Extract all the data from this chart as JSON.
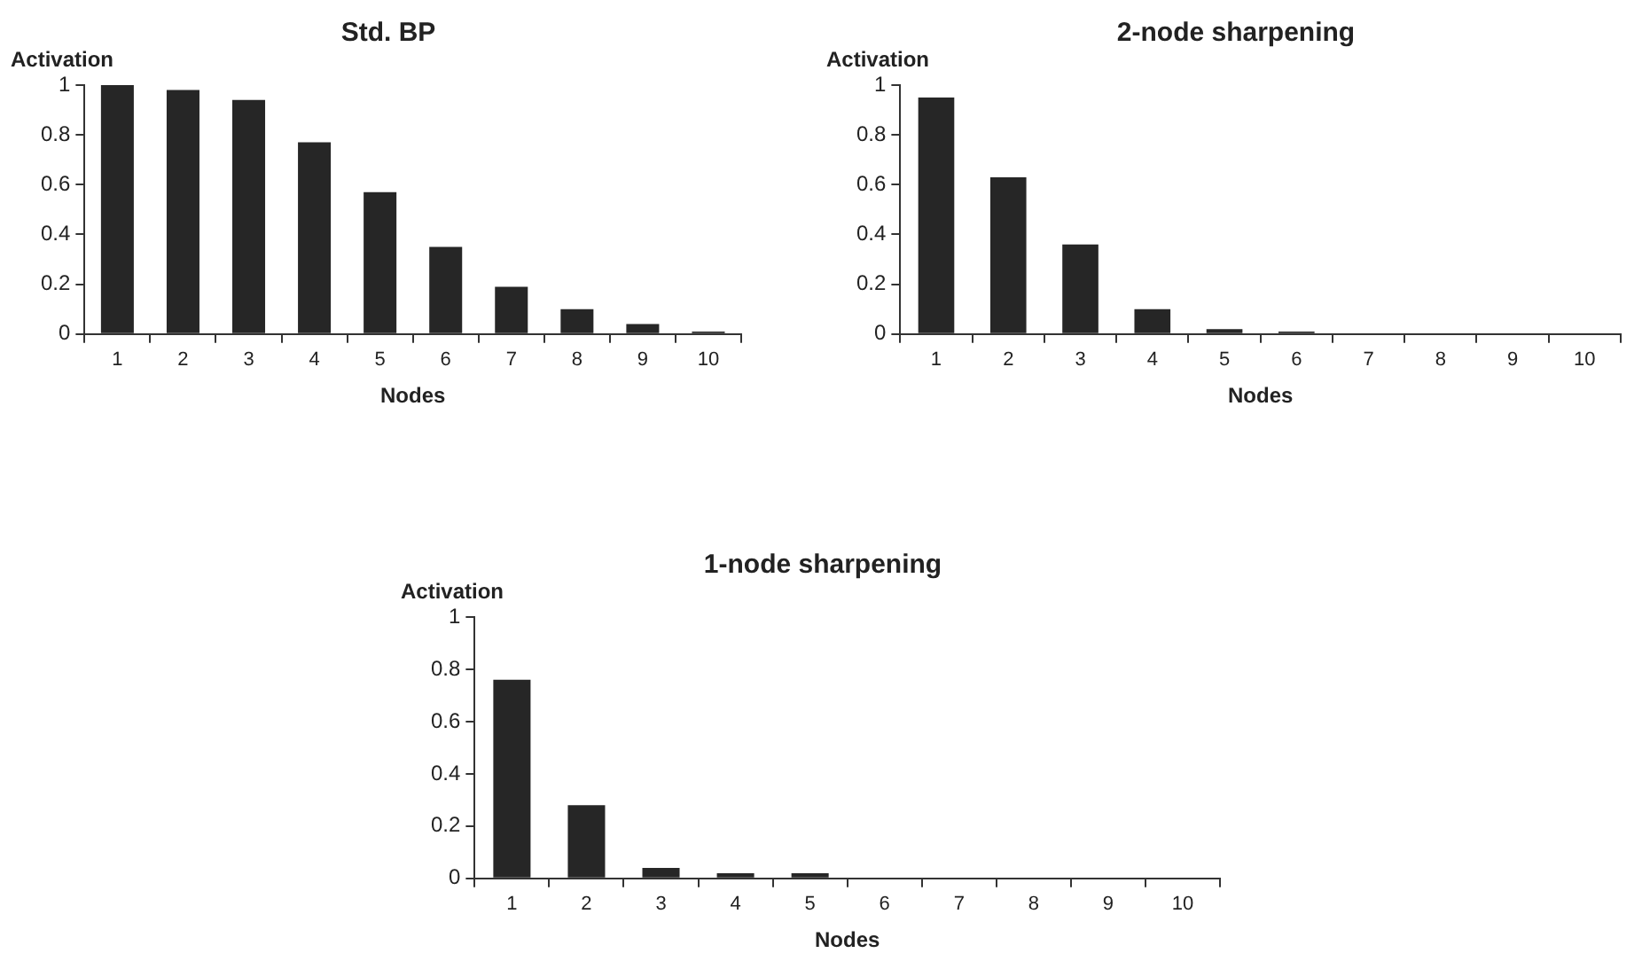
{
  "chart_data": [
    {
      "type": "bar",
      "title": "Std. BP",
      "xlabel": "Nodes",
      "ylabel": "Activation",
      "categories": [
        "1",
        "2",
        "3",
        "4",
        "5",
        "6",
        "7",
        "8",
        "9",
        "10"
      ],
      "values": [
        1,
        0.98,
        0.94,
        0.77,
        0.57,
        0.35,
        0.19,
        0.1,
        0.04,
        0.01
      ],
      "color": "#262626",
      "ylim": [
        0,
        1
      ],
      "yticks": [
        0,
        0.2,
        0.4,
        0.6,
        0.8,
        1
      ],
      "grid": false,
      "legend": false
    },
    {
      "type": "bar",
      "title": "2-node sharpening",
      "xlabel": "Nodes",
      "ylabel": "Activation",
      "categories": [
        "1",
        "2",
        "3",
        "4",
        "5",
        "6",
        "7",
        "8",
        "9",
        "10"
      ],
      "values": [
        0.95,
        0.63,
        0.36,
        0.1,
        0.02,
        0.01,
        0,
        0,
        0,
        0
      ],
      "color": "#262626",
      "ylim": [
        0,
        1
      ],
      "yticks": [
        0,
        0.2,
        0.4,
        0.6,
        0.8,
        1
      ],
      "grid": false,
      "legend": false
    },
    {
      "type": "bar",
      "title": "1-node sharpening",
      "xlabel": "Nodes",
      "ylabel": "Activation",
      "categories": [
        "1",
        "2",
        "3",
        "4",
        "5",
        "6",
        "7",
        "8",
        "9",
        "10"
      ],
      "values": [
        0.76,
        0.28,
        0.04,
        0.02,
        0.02,
        0,
        0,
        0,
        0,
        0
      ],
      "color": "#262626",
      "ylim": [
        0,
        1
      ],
      "yticks": [
        0,
        0.2,
        0.4,
        0.6,
        0.8,
        1
      ],
      "grid": false,
      "legend": false
    }
  ]
}
